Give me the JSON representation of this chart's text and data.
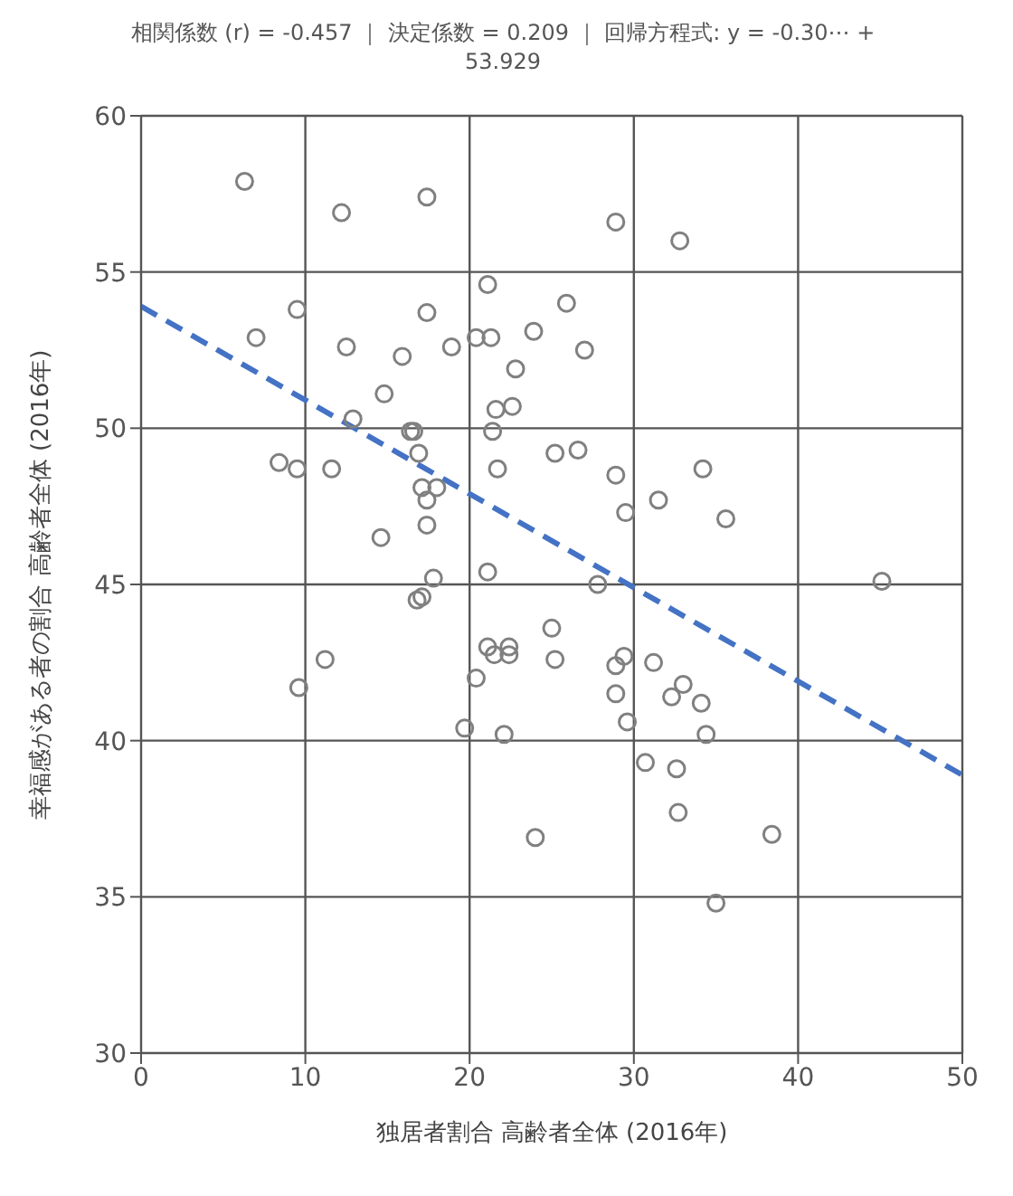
{
  "chart_data": {
    "type": "scatter",
    "title": "相関係数 (r) = -0.457 ｜ 決定係数 = 0.209 ｜ 回帰方程式: y = -0.30⋯ + 53.929",
    "xlabel": "独居者割合 高齢者全体 (2016年)",
    "ylabel": "幸福感がある者の割合 高齢者全体 (2016年)",
    "xlim": [
      0,
      50
    ],
    "xticks": [
      0,
      10,
      20,
      30,
      40,
      50
    ],
    "ylim": [
      30,
      60
    ],
    "yticks": [
      30,
      35,
      40,
      45,
      50,
      55,
      60
    ],
    "grid": true,
    "series": [
      {
        "color": "#808080",
        "marker": "circle",
        "x": [
          6.3,
          12.2,
          17.4,
          21.1,
          9.5,
          17.4,
          7.0,
          12.5,
          15.9,
          18.9,
          20.4,
          21.3,
          23.9,
          22.8,
          14.8,
          21.6,
          22.6,
          12.9,
          16.4,
          16.6,
          21.4,
          16.9,
          25.2,
          8.4,
          9.5,
          11.6,
          21.7,
          17.1,
          18.0,
          17.4,
          17.4,
          14.6,
          17.8,
          21.1,
          28.9,
          32.8,
          25.9,
          27.0,
          26.6,
          28.9,
          34.2,
          31.5,
          35.6,
          29.5,
          45.1,
          16.8,
          17.1,
          11.2,
          9.6,
          21.1,
          21.5,
          22.4,
          22.4,
          25.0,
          25.2,
          20.4,
          19.7,
          22.1,
          24.0,
          27.8,
          29.4,
          28.9,
          31.2,
          28.9,
          33.0,
          32.3,
          34.1,
          29.6,
          34.4,
          30.7,
          32.6,
          32.7,
          38.4,
          35.0
        ],
        "values": [
          57.9,
          56.9,
          57.4,
          54.6,
          53.8,
          53.7,
          52.9,
          52.6,
          52.3,
          52.6,
          52.9,
          52.9,
          53.1,
          51.9,
          51.1,
          50.6,
          50.7,
          50.3,
          49.9,
          49.9,
          49.9,
          49.2,
          49.2,
          48.9,
          48.7,
          48.7,
          48.7,
          48.1,
          48.1,
          47.7,
          46.9,
          46.5,
          45.2,
          45.4,
          56.6,
          56.0,
          54.0,
          52.5,
          49.3,
          48.5,
          48.7,
          47.7,
          47.1,
          47.3,
          45.1,
          44.5,
          44.6,
          42.6,
          41.7,
          43.0,
          42.75,
          43.0,
          42.75,
          43.6,
          42.6,
          42.0,
          40.4,
          40.2,
          36.9,
          45.0,
          42.7,
          42.4,
          42.5,
          41.5,
          41.8,
          41.4,
          41.2,
          40.6,
          40.2,
          39.3,
          39.1,
          37.7,
          37.0,
          34.8
        ]
      },
      {
        "type": "line",
        "color": "#4472c4",
        "marker": "none",
        "line_style": "dashed",
        "x": [
          0,
          50
        ],
        "values": [
          53.9,
          38.9
        ]
      }
    ]
  }
}
